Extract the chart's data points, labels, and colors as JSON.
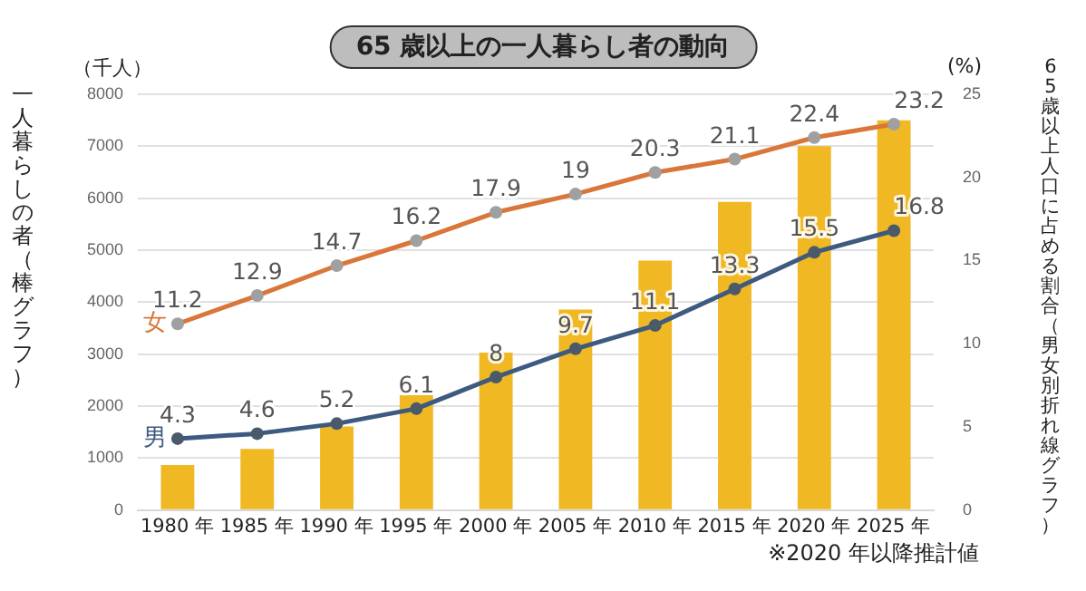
{
  "chart_data": {
    "type": "bar",
    "title": "65 歳以上の一人暮らし者の動向",
    "ylabel": "一人暮らしの者（棒グラフ）",
    "y2label": "65 歳以上人口に占める割合（男女別折れ線グラフ）",
    "categories": [
      "1980 年",
      "1985 年",
      "1990 年",
      "1995 年",
      "2000 年",
      "2005 年",
      "2010 年",
      "2015 年",
      "2020 年",
      "2025 年"
    ],
    "series": [
      {
        "type": "line",
        "name": "女",
        "color": "#d9773a",
        "axis": "y2",
        "values": [
          11.2,
          12.9,
          14.7,
          16.2,
          17.9,
          19,
          20.3,
          21.1,
          22.4,
          23.2
        ],
        "value_labels": [
          "11.2",
          "12.9",
          "14.7",
          "16.2",
          "17.9",
          "19",
          "20.3",
          "21.1",
          "22.4",
          "23.2"
        ]
      },
      {
        "type": "line",
        "name": "男",
        "color": "#3d5a80",
        "axis": "y2",
        "values": [
          4.3,
          4.6,
          5.2,
          6.1,
          8,
          9.7,
          11.1,
          13.3,
          15.5,
          16.8
        ],
        "value_labels": [
          "4.3",
          "4.6",
          "5.2",
          "6.1",
          "8",
          "9.7",
          "11.1",
          "13.3",
          "15.5",
          "16.8"
        ]
      },
      {
        "color": "#f0b823",
        "values": [
          870,
          1180,
          1610,
          2210,
          3030,
          3860,
          4800,
          5930,
          7000,
          7500
        ]
      }
    ],
    "ylim": [
      0,
      8000
    ],
    "yticks": [
      0,
      1000,
      2000,
      3000,
      4000,
      5000,
      6000,
      7000,
      8000
    ],
    "y2lim": [
      0,
      25
    ],
    "y2ticks": [
      0,
      5,
      10,
      15,
      20,
      25
    ],
    "annotations": [
      "（千人）",
      "(%)",
      "※2020 年以降推計値"
    ],
    "grid": "y",
    "legend": false,
    "marker": "circle"
  }
}
